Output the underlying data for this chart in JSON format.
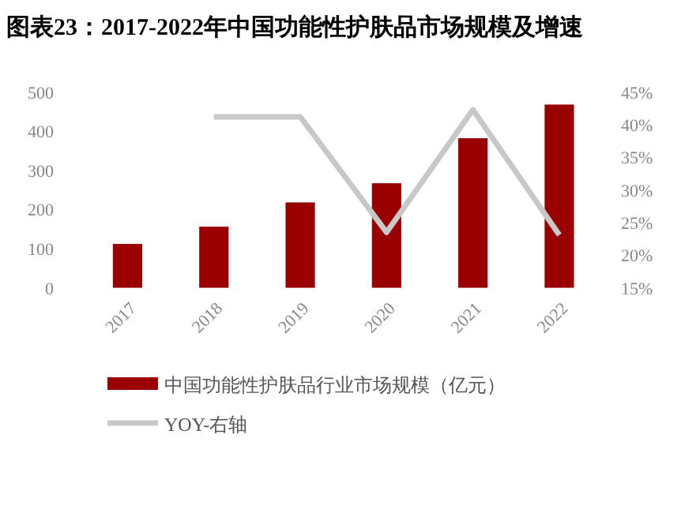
{
  "chart_data": {
    "type": "bar",
    "title": "图表23：2017-2022年中国功能性护肤品市场规模及增速",
    "categories": [
      "2017",
      "2018",
      "2019",
      "2020",
      "2021",
      "2022"
    ],
    "series": [
      {
        "name": "中国功能性护肤品行业市场规模（亿元）",
        "color": "#990000",
        "values": [
          112,
          156,
          218,
          267,
          382,
          468
        ]
      },
      {
        "name": "YOY-右轴",
        "type": "line",
        "axis": "y2",
        "color": "#c8c8c8",
        "values": [
          null,
          41.2,
          41.2,
          23.5,
          42.3,
          23.1
        ]
      }
    ],
    "ylim": [
      0,
      500
    ],
    "yticks": [
      0,
      100,
      200,
      300,
      400,
      500
    ],
    "y2lim": [
      15,
      45
    ],
    "y2ticks": [
      {
        "value": 15,
        "label": "15%"
      },
      {
        "value": 20,
        "label": "20%"
      },
      {
        "value": 25,
        "label": "25%"
      },
      {
        "value": 30,
        "label": "30%"
      },
      {
        "value": 35,
        "label": "35%"
      },
      {
        "value": 40,
        "label": "40%"
      },
      {
        "value": 45,
        "label": "45%"
      }
    ],
    "legend": "bottom",
    "grid": false
  }
}
